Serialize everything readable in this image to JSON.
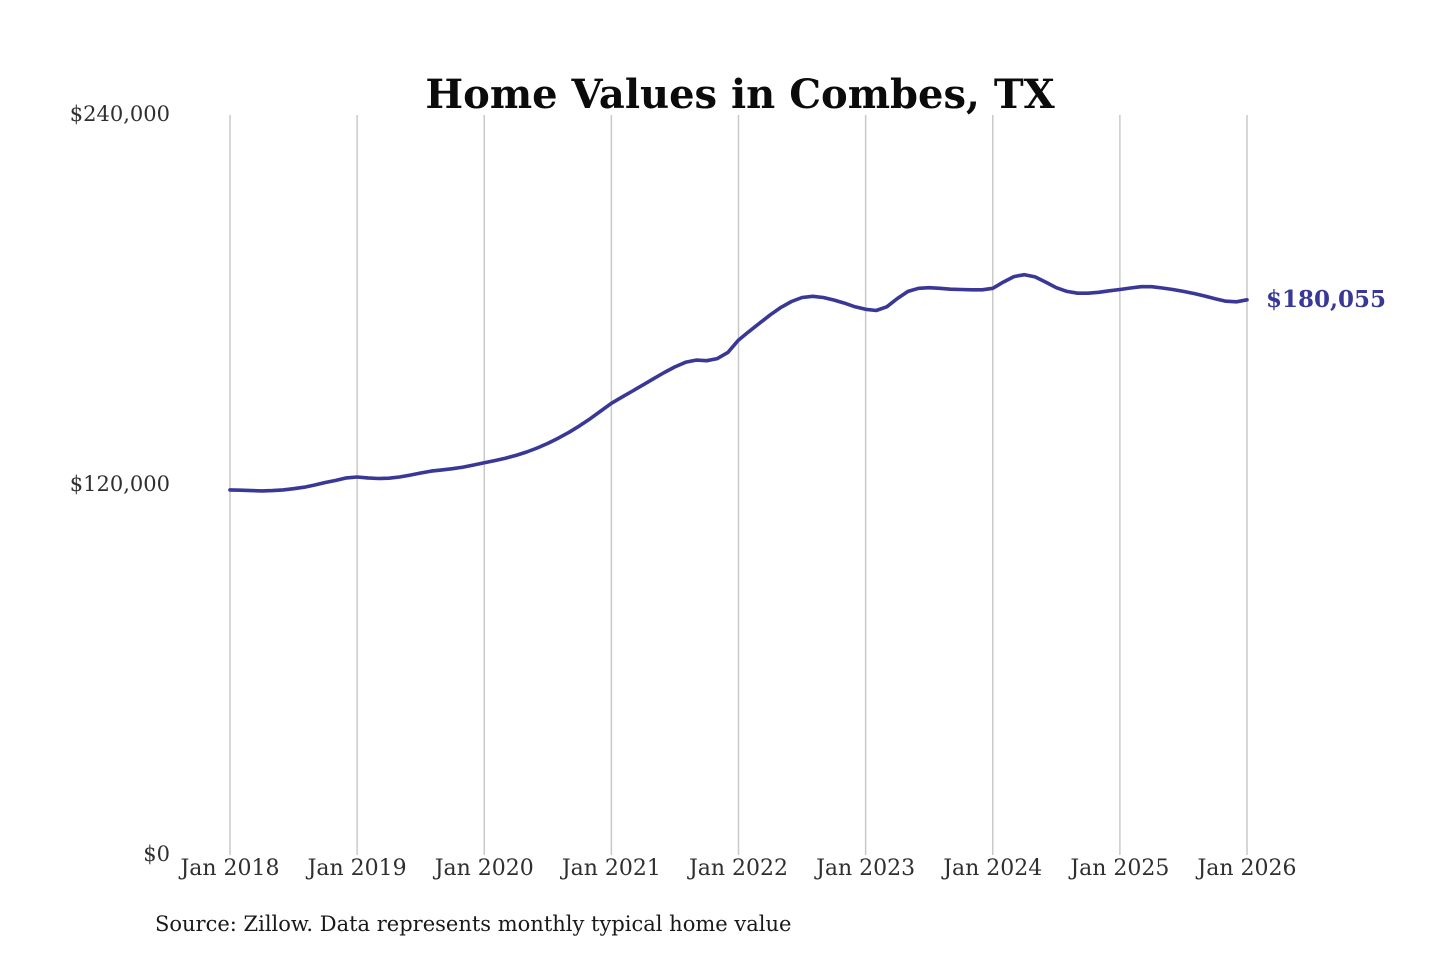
{
  "page": {
    "background_color": "#ffffff"
  },
  "chart_data": {
    "type": "line",
    "title": "Home Values in Combes, TX",
    "source": "Source: Zillow. Data represents monthly typical home value",
    "series_name": "Monthly typical home value",
    "line_color": "#3a3897",
    "grid_color": "#c9c9c9",
    "end_label": "$180,055",
    "end_value": 180055,
    "ylim": [
      0,
      240000
    ],
    "grid": "vertical-only",
    "legend": "none",
    "y_tick_labels": [
      "$240,000",
      "$120,000",
      "$0"
    ],
    "y_tick_values": [
      240000,
      120000,
      0
    ],
    "x_tick_labels": [
      "Jan 2018",
      "Jan 2019",
      "Jan 2020",
      "Jan 2021",
      "Jan 2022",
      "Jan 2023",
      "Jan 2024",
      "Jan 2025",
      "Jan 2026"
    ],
    "x_start": "Jan 2018",
    "x_end": "Jan 2026",
    "x_frequency": "monthly",
    "values": [
      118400,
      118300,
      118200,
      118100,
      118200,
      118400,
      118800,
      119300,
      120000,
      120800,
      121500,
      122300,
      122600,
      122300,
      122100,
      122200,
      122600,
      123200,
      123900,
      124500,
      124900,
      125300,
      125800,
      126500,
      127200,
      127900,
      128700,
      129600,
      130700,
      132000,
      133500,
      135200,
      137100,
      139200,
      141500,
      144000,
      146500,
      148500,
      150500,
      152500,
      154500,
      156500,
      158300,
      159800,
      160500,
      160300,
      161000,
      163000,
      167000,
      169800,
      172500,
      175200,
      177600,
      179500,
      180800,
      181200,
      180800,
      180000,
      179000,
      177800,
      177000,
      176600,
      177800,
      180500,
      182800,
      183800,
      184000,
      183800,
      183500,
      183400,
      183300,
      183300,
      183800,
      185800,
      187600,
      188200,
      187500,
      185800,
      184000,
      182800,
      182200,
      182200,
      182500,
      183000,
      183400,
      183900,
      184300,
      184300,
      183900,
      183400,
      182800,
      182100,
      181300,
      180400,
      179600,
      179400,
      180055
    ]
  }
}
